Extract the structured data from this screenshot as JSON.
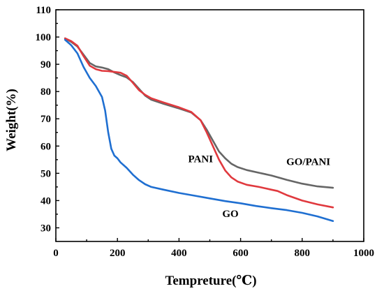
{
  "chart_data": {
    "type": "line",
    "xlabel": "Tempreture(℃)",
    "ylabel": "Weight(%)",
    "xlim": [
      0,
      1000
    ],
    "ylim": [
      25,
      110
    ],
    "xticks": [
      0,
      200,
      400,
      600,
      800,
      1000
    ],
    "yticks": [
      30,
      40,
      50,
      60,
      70,
      80,
      90,
      100,
      110
    ],
    "x_tick_labels": [
      "0",
      "200",
      "400",
      "600",
      "800",
      "1000"
    ],
    "y_tick_labels": [
      "30",
      "40",
      "50",
      "60",
      "70",
      "80",
      "90",
      "100",
      "110"
    ],
    "grid": false,
    "legend": "none",
    "series": [
      {
        "name": "GO/PANI",
        "color": "#666666",
        "x": [
          30,
          50,
          70,
          90,
          110,
          130,
          150,
          170,
          190,
          210,
          230,
          250,
          270,
          290,
          310,
          350,
          400,
          440,
          470,
          490,
          510,
          530,
          550,
          570,
          590,
          620,
          660,
          700,
          750,
          800,
          850,
          900
        ],
        "y": [
          99.5,
          98.2,
          96.5,
          93.5,
          90.5,
          89.2,
          88.8,
          88.2,
          87.0,
          86.0,
          85.2,
          83.5,
          81.0,
          78.5,
          77.0,
          75.5,
          73.8,
          72.3,
          69.5,
          66.0,
          62.0,
          58.0,
          55.5,
          53.5,
          52.3,
          51.2,
          50.2,
          49.2,
          47.6,
          46.2,
          45.2,
          44.7
        ]
      },
      {
        "name": "PANI",
        "color": "#e0393e",
        "x": [
          30,
          50,
          70,
          90,
          110,
          130,
          150,
          170,
          190,
          210,
          230,
          250,
          270,
          290,
          310,
          350,
          400,
          440,
          470,
          490,
          510,
          530,
          550,
          570,
          590,
          620,
          660,
          700,
          720,
          750,
          800,
          850,
          900
        ],
        "y": [
          99.5,
          98.5,
          96.8,
          93.0,
          89.5,
          88.2,
          87.6,
          87.5,
          87.2,
          86.9,
          85.8,
          83.2,
          80.5,
          78.8,
          77.5,
          76.0,
          74.2,
          72.5,
          69.5,
          65.0,
          60.0,
          55.0,
          51.0,
          48.5,
          47.0,
          45.8,
          45.0,
          44.0,
          43.5,
          42.0,
          40.0,
          38.6,
          37.5
        ]
      },
      {
        "name": "GO",
        "color": "#1f6fd1",
        "x": [
          30,
          50,
          70,
          90,
          110,
          130,
          150,
          160,
          170,
          180,
          190,
          200,
          210,
          230,
          250,
          270,
          290,
          310,
          350,
          400,
          450,
          500,
          550,
          600,
          650,
          700,
          750,
          800,
          850,
          900
        ],
        "y": [
          99.0,
          97.0,
          94.0,
          89.0,
          85.0,
          82.0,
          78.0,
          73.0,
          65.0,
          59.0,
          56.5,
          55.5,
          54.0,
          52.0,
          49.5,
          47.5,
          46.0,
          45.0,
          44.0,
          42.8,
          41.8,
          40.8,
          39.8,
          39.0,
          38.0,
          37.2,
          36.5,
          35.5,
          34.2,
          32.5
        ]
      }
    ],
    "annotations": [
      {
        "text": "PANI",
        "series": "PANI",
        "x": 470,
        "y": 54
      },
      {
        "text": "GO/PANI",
        "series": "GO/PANI",
        "x": 820,
        "y": 53
      },
      {
        "text": "GO",
        "series": "GO",
        "x": 567,
        "y": 34
      }
    ]
  }
}
